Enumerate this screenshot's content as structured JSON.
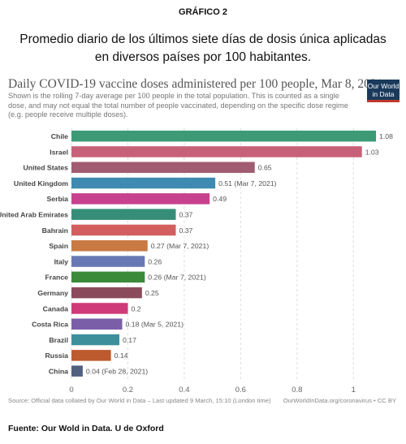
{
  "document": {
    "label": "GRÁFICO 2",
    "title_line1": "Promedio diario de los últimos siete días de dosis única aplicadas",
    "title_line2": "en diversos países por 100 habitantes.",
    "source_note": "Fuente: Our Wold in Data. U de Oxford"
  },
  "logo": {
    "line1": "Our World",
    "line2": "in Data"
  },
  "chart_data": {
    "type": "bar",
    "orientation": "horizontal",
    "title": "Daily COVID-19 vaccine doses administered per 100 people, Mar 8, 2021",
    "subtitle": "Shown is the rolling 7-day average per 100 people in the total population. This is counted as a single dose, and may not equal the total number of people vaccinated, depending on the specific dose regime (e.g. people receive multiple doses).",
    "categories": [
      "Chile",
      "Israel",
      "United States",
      "United Kingdom",
      "Serbia",
      "United Arab Emirates",
      "Bahrain",
      "Spain",
      "Italy",
      "France",
      "Germany",
      "Canada",
      "Costa Rica",
      "Brazil",
      "Russia",
      "China"
    ],
    "values": [
      1.08,
      1.03,
      0.65,
      0.51,
      0.49,
      0.37,
      0.37,
      0.27,
      0.26,
      0.26,
      0.25,
      0.2,
      0.18,
      0.17,
      0.14,
      0.04
    ],
    "value_labels": [
      "1.08",
      "1.03",
      "0.65",
      "0.51 (Mar 7, 2021)",
      "0.49",
      "0.37",
      "0.37",
      "0.27 (Mar 7, 2021)",
      "0.26",
      "0.26 (Mar 7, 2021)",
      "0.25",
      "0.2",
      "0.18 (Mar 5, 2021)",
      "0.17",
      "0.14",
      "0.04 (Feb 28, 2021)"
    ],
    "colors": [
      "#3c9a75",
      "#c7617a",
      "#a15c72",
      "#3f8ab1",
      "#c8418e",
      "#378e78",
      "#d35e5e",
      "#c97a43",
      "#6878b4",
      "#3a8a3a",
      "#8a4a5c",
      "#d03a78",
      "#7a5fa8",
      "#3e8f9c",
      "#bd5a2e",
      "#51607e"
    ],
    "xlim": [
      0,
      1.1
    ],
    "xticks": [
      "0",
      "0.2",
      "0.4",
      "0.6",
      "0.8",
      "1"
    ],
    "xtick_values": [
      0,
      0.2,
      0.4,
      0.6,
      0.8,
      1.0
    ],
    "grid": true,
    "source": "Source: Official data collated by Our World in Data – Last updated 9 March, 15:10 (London time)",
    "attribution": "OurWorldInData.org/coronavirus • CC BY"
  }
}
